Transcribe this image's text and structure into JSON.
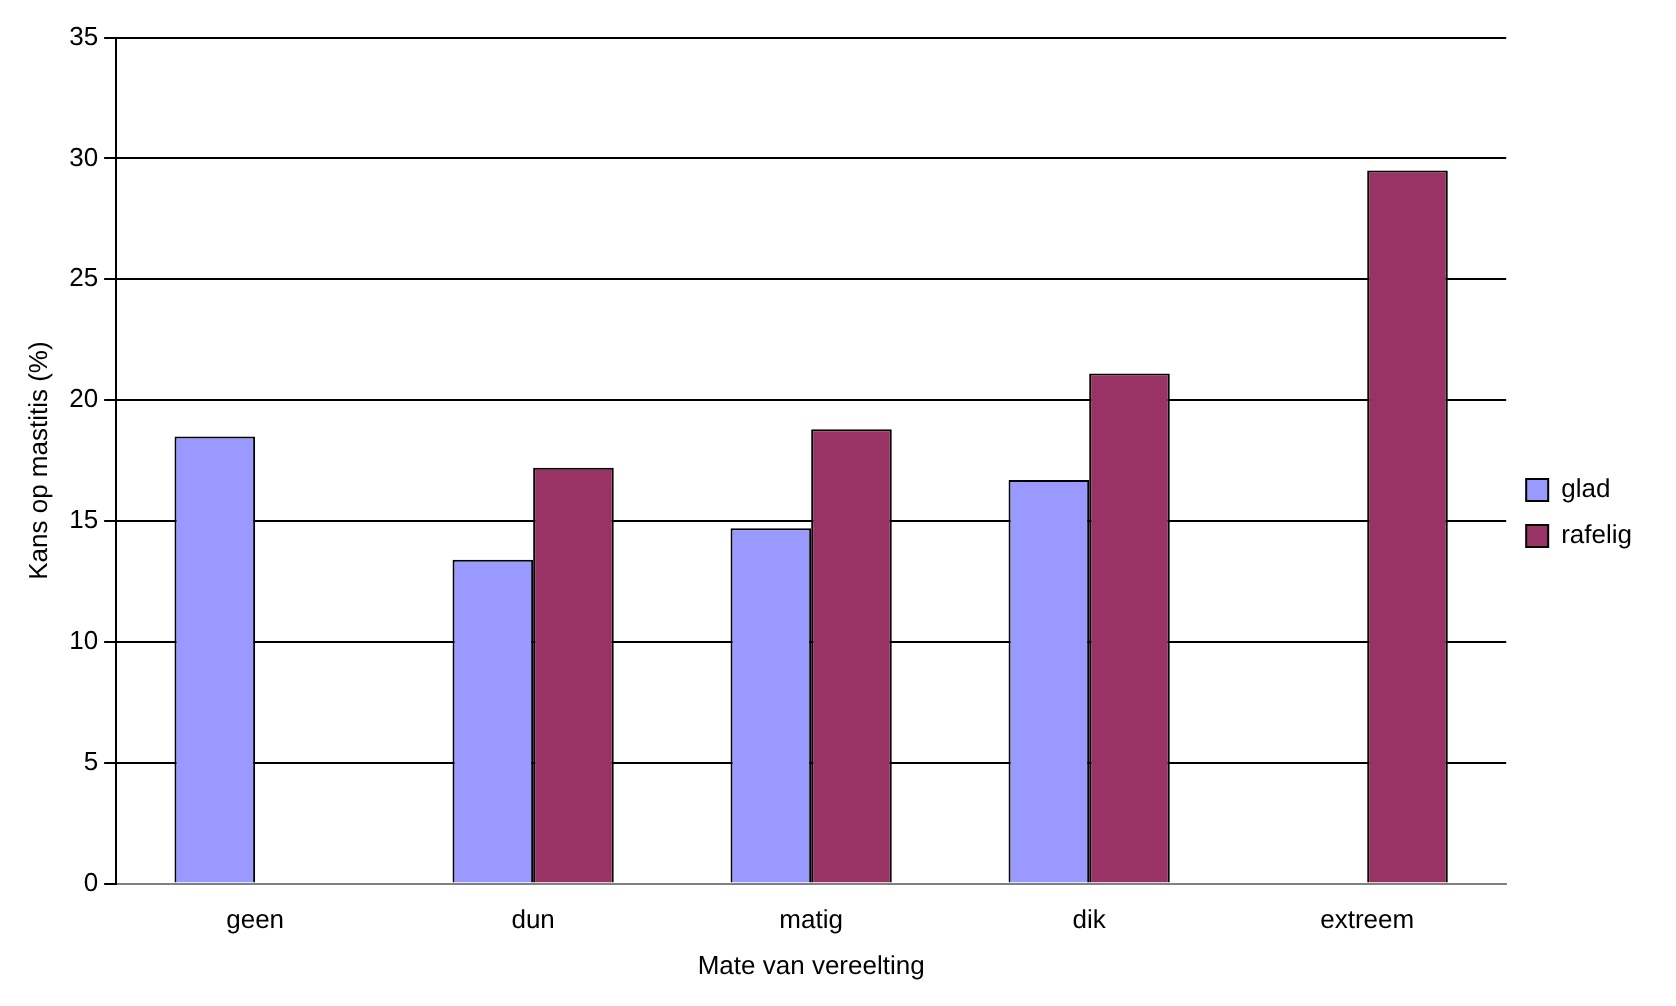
{
  "chart_data": {
    "type": "bar",
    "xlabel": "Mate van vereelting",
    "ylabel": "Kans op mastitis (%)",
    "categories": [
      "geen",
      "dun",
      "matig",
      "dik",
      "extreem"
    ],
    "series": [
      {
        "name": "glad",
        "color": "#9999ff",
        "values": [
          18.5,
          13.4,
          14.7,
          16.7,
          null
        ]
      },
      {
        "name": "rafelig",
        "color": "#993366",
        "values": [
          null,
          17.2,
          18.8,
          21.1,
          29.5
        ]
      }
    ],
    "ylim": [
      0,
      35
    ],
    "yticks": [
      0,
      5,
      10,
      15,
      20,
      25,
      30,
      35
    ],
    "grid": "y",
    "legend": "right"
  }
}
